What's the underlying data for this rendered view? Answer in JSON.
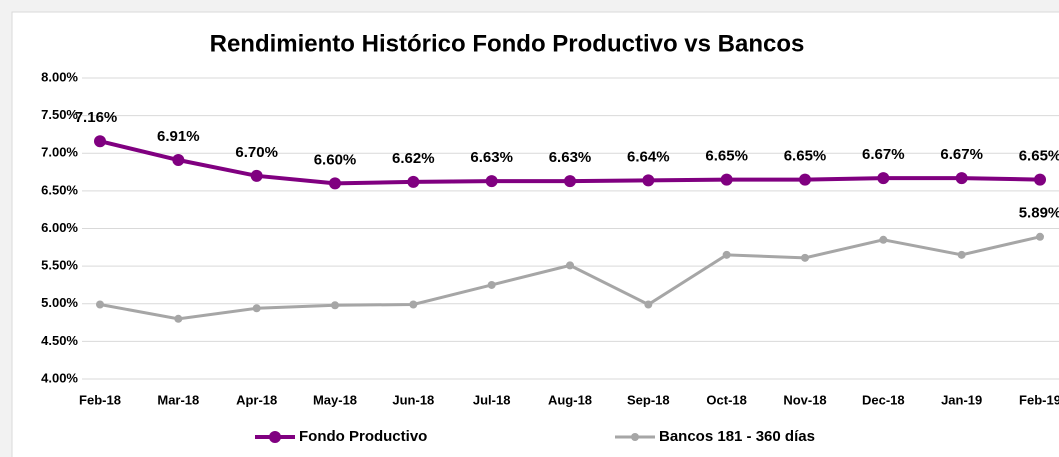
{
  "chart_data": {
    "type": "line",
    "title": "Rendimiento Histórico Fondo Productivo vs Bancos",
    "categories": [
      "Feb-18",
      "Mar-18",
      "Apr-18",
      "May-18",
      "Jun-18",
      "Jul-18",
      "Aug-18",
      "Sep-18",
      "Oct-18",
      "Nov-18",
      "Dec-18",
      "Jan-19",
      "Feb-19"
    ],
    "series": [
      {
        "name": "Fondo Productivo",
        "color": "#800080",
        "values": [
          7.16,
          6.91,
          6.7,
          6.6,
          6.62,
          6.63,
          6.63,
          6.64,
          6.65,
          6.65,
          6.67,
          6.67,
          6.65
        ],
        "value_labels": [
          "7.16%",
          "6.91%",
          "6.70%",
          "6.60%",
          "6.62%",
          "6.63%",
          "6.63%",
          "6.64%",
          "6.65%",
          "6.65%",
          "6.67%",
          "6.67%",
          "6.65%"
        ]
      },
      {
        "name": "Bancos 181 - 360 días",
        "color": "#a6a6a6",
        "values": [
          4.99,
          4.8,
          4.94,
          4.98,
          4.99,
          5.25,
          5.51,
          4.99,
          5.65,
          5.61,
          5.85,
          5.65,
          5.89
        ],
        "value_labels": [
          null,
          null,
          null,
          null,
          null,
          null,
          null,
          null,
          null,
          null,
          null,
          null,
          "5.89%"
        ]
      }
    ],
    "ylim": [
      4,
      8
    ],
    "yticks": [
      {
        "value": 4,
        "label": "4.00%"
      },
      {
        "value": 4.5,
        "label": "4.50%"
      },
      {
        "value": 5,
        "label": "5.00%"
      },
      {
        "value": 5.5,
        "label": "5.50%"
      },
      {
        "value": 6,
        "label": "6.00%"
      },
      {
        "value": 6.5,
        "label": "6.50%"
      },
      {
        "value": 7,
        "label": "7.00%"
      },
      {
        "value": 7.5,
        "label": "7.50%"
      },
      {
        "value": 8,
        "label": "8.00%"
      }
    ],
    "grid": true,
    "legend": "bottom"
  }
}
